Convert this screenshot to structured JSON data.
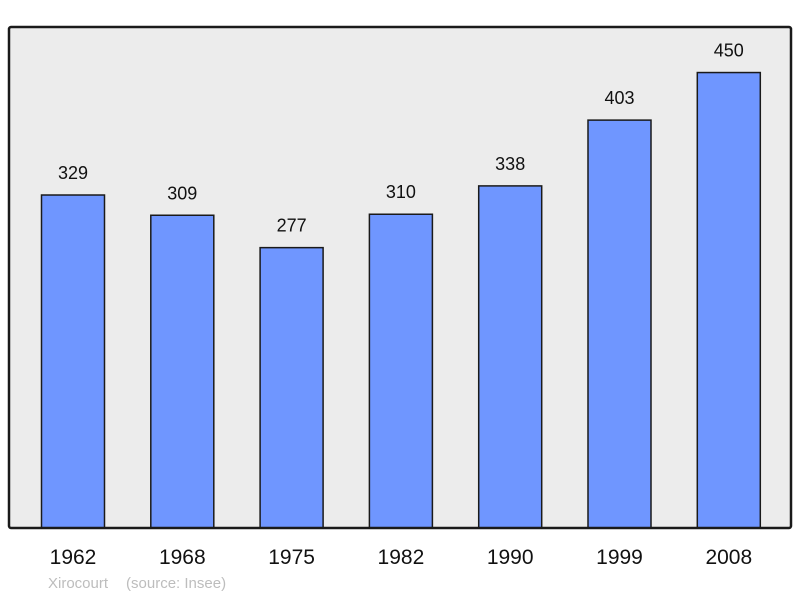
{
  "chart_data": {
    "type": "bar",
    "categories": [
      "1962",
      "1968",
      "1975",
      "1982",
      "1990",
      "1999",
      "2008"
    ],
    "values": [
      329,
      309,
      277,
      310,
      338,
      403,
      450
    ],
    "title": "",
    "xlabel": "",
    "ylabel": "",
    "ylim": [
      0,
      495
    ],
    "grid": false,
    "data_labels": true,
    "colors": {
      "bar": "#6f96ff",
      "plot_background": "#ececec",
      "border": "#1a1a1a"
    }
  },
  "caption": {
    "place": "Xirocourt",
    "source": "(source: Insee)"
  }
}
